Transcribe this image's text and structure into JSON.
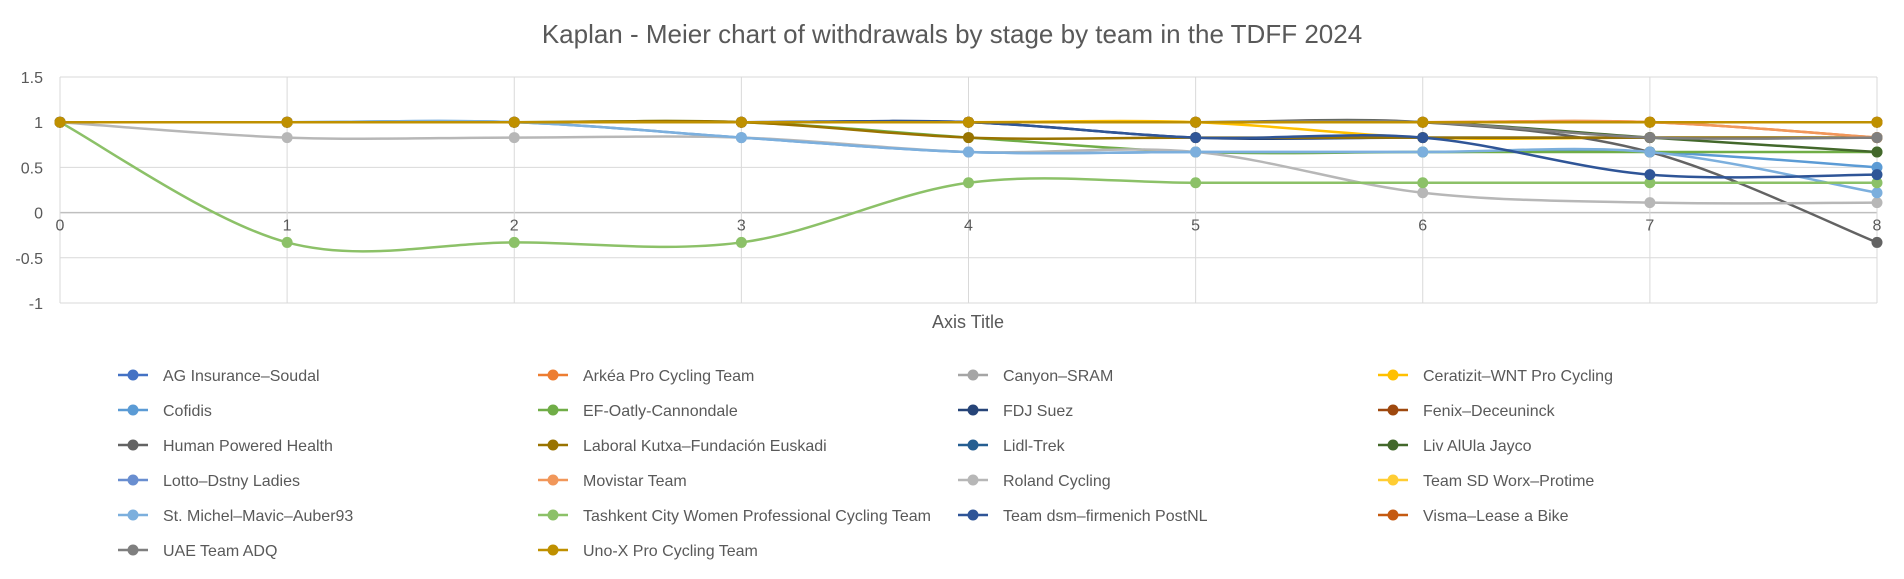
{
  "chart_data": {
    "type": "line",
    "title": "Kaplan - Meier chart of withdrawals by stage by team in the TDFF 2024",
    "xlabel": "Axis Title",
    "ylabel": "",
    "x": [
      0,
      1,
      2,
      3,
      4,
      5,
      6,
      7,
      8
    ],
    "xlim": [
      0,
      8
    ],
    "ylim": [
      -1,
      1.5
    ],
    "yticks": [
      "1.5",
      "1",
      "0.5",
      "0",
      "-0.5",
      "-1"
    ],
    "ytick_values": [
      1.5,
      1,
      0.5,
      0,
      -0.5,
      -1
    ],
    "xticks": [
      "0",
      "1",
      "2",
      "3",
      "4",
      "5",
      "6",
      "7",
      "8"
    ],
    "grid": true,
    "smooth": true,
    "legend_position": "bottom",
    "series": [
      {
        "name": "AG Insurance–Soudal",
        "color": "#4472C4",
        "values": [
          1,
          1,
          1,
          1,
          1,
          1,
          1,
          1,
          1
        ]
      },
      {
        "name": "Arkéa Pro Cycling Team",
        "color": "#ED7D31",
        "values": [
          1,
          1,
          1,
          1,
          1,
          1,
          1,
          1,
          0.83
        ]
      },
      {
        "name": "Canyon–SRAM",
        "color": "#A5A5A5",
        "values": [
          1,
          1,
          1,
          1,
          1,
          1,
          1,
          1,
          1
        ]
      },
      {
        "name": "Ceratizit–WNT Pro Cycling",
        "color": "#FFC000",
        "values": [
          1,
          1,
          1,
          1,
          1,
          1,
          0.83,
          0.83,
          0.83
        ]
      },
      {
        "name": "Cofidis",
        "color": "#5B9BD5",
        "values": [
          1,
          1,
          1,
          0.83,
          0.67,
          0.67,
          0.67,
          0.67,
          0.5
        ]
      },
      {
        "name": "EF-Oatly-Cannondale",
        "color": "#70AD47",
        "values": [
          1,
          1,
          1,
          1,
          0.83,
          0.67,
          0.67,
          0.67,
          0.67
        ]
      },
      {
        "name": "FDJ Suez",
        "color": "#264478",
        "values": [
          1,
          1,
          1,
          1,
          1,
          0.83,
          0.83,
          0.83,
          0.83
        ]
      },
      {
        "name": "Fenix–Deceuninck",
        "color": "#9E480E",
        "values": [
          1,
          1,
          1,
          1,
          1,
          1,
          1,
          1,
          1
        ]
      },
      {
        "name": "Human Powered Health",
        "color": "#636363",
        "values": [
          1,
          1,
          1,
          1,
          1,
          1,
          1,
          0.67,
          -0.33
        ]
      },
      {
        "name": "Laboral Kutxa–Fundación Euskadi",
        "color": "#997300",
        "values": [
          1,
          1,
          1,
          1,
          0.83,
          0.83,
          0.83,
          0.83,
          0.83
        ]
      },
      {
        "name": "Lidl-Trek",
        "color": "#255E91",
        "values": [
          1,
          1,
          1,
          1,
          1,
          1,
          1,
          1,
          1
        ]
      },
      {
        "name": "Liv AlUla Jayco",
        "color": "#43682B",
        "values": [
          1,
          1,
          1,
          1,
          1,
          1,
          1,
          0.83,
          0.67
        ]
      },
      {
        "name": "Lotto–Dstny Ladies",
        "color": "#698ED0",
        "values": [
          1,
          1,
          1,
          1,
          1,
          1,
          1,
          1,
          1
        ]
      },
      {
        "name": "Movistar Team",
        "color": "#F1975A",
        "values": [
          1,
          1,
          1,
          1,
          1,
          1,
          1,
          1,
          0.83
        ]
      },
      {
        "name": "Roland Cycling",
        "color": "#B7B7B7",
        "values": [
          1,
          0.83,
          0.83,
          0.83,
          0.67,
          0.67,
          0.22,
          0.11,
          0.11
        ]
      },
      {
        "name": "Team SD Worx–Protime",
        "color": "#FFCD33",
        "values": [
          1,
          1,
          1,
          1,
          1,
          1,
          1,
          1,
          1
        ]
      },
      {
        "name": "St. Michel–Mavic–Auber93",
        "color": "#7CAFDD",
        "values": [
          1,
          1,
          1,
          0.83,
          0.67,
          0.67,
          0.67,
          0.67,
          0.22
        ]
      },
      {
        "name": "Tashkent City Women Professional Cycling Team",
        "color": "#8CC168",
        "values": [
          1,
          -0.33,
          -0.33,
          -0.33,
          0.33,
          0.33,
          0.33,
          0.33,
          0.33
        ]
      },
      {
        "name": "Team dsm–firmenich PostNL",
        "color": "#2F5597",
        "values": [
          1,
          1,
          1,
          1,
          1,
          0.83,
          0.83,
          0.42,
          0.42
        ]
      },
      {
        "name": "Visma–Lease a Bike",
        "color": "#C55A11",
        "values": [
          1,
          1,
          1,
          1,
          1,
          1,
          1,
          1,
          1
        ]
      },
      {
        "name": "UAE Team ADQ",
        "color": "#7F7F7F",
        "values": [
          1,
          1,
          1,
          1,
          1,
          1,
          1,
          0.83,
          0.83
        ]
      },
      {
        "name": "Uno-X Pro Cycling Team",
        "color": "#BF9000",
        "values": [
          1,
          1,
          1,
          1,
          1,
          1,
          1,
          1,
          1
        ]
      }
    ]
  }
}
